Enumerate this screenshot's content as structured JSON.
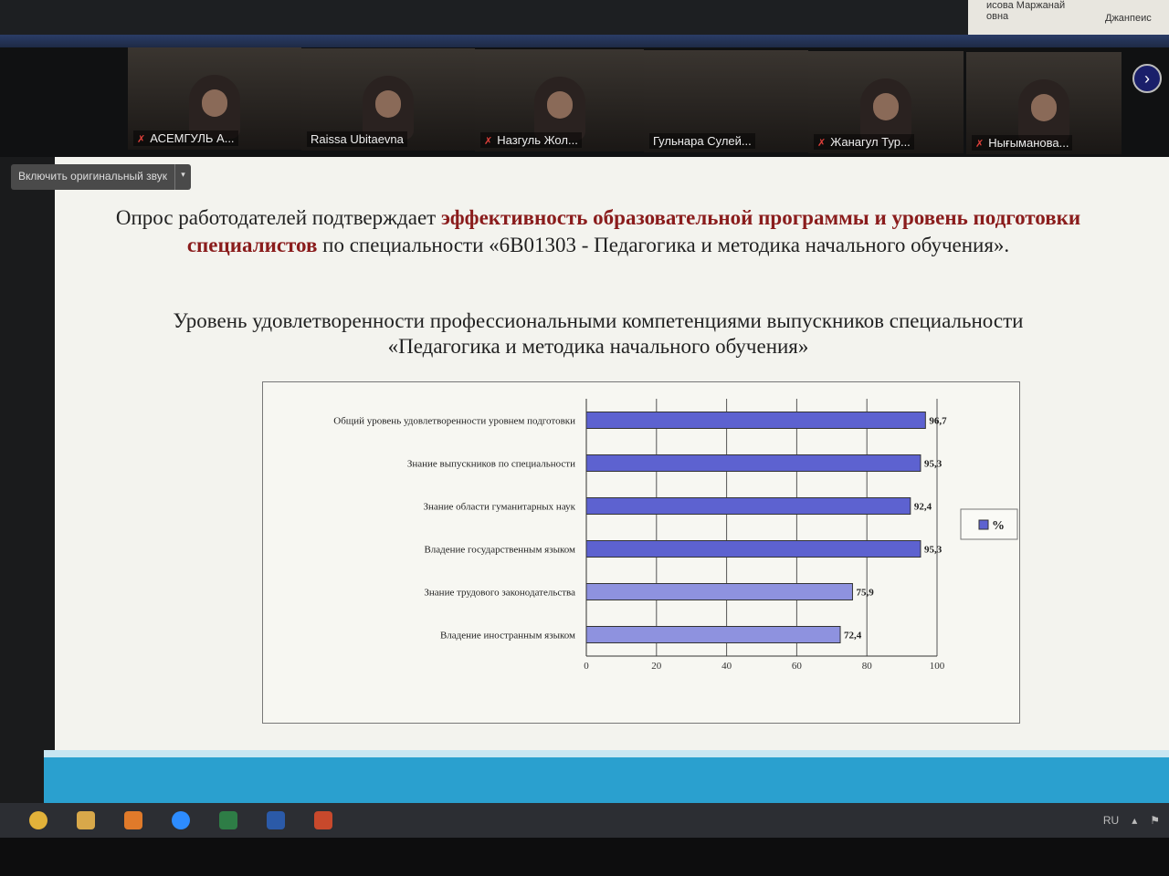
{
  "background_paper": {
    "line1": "исова Маржанай",
    "line2": "овна",
    "right": "Джанпеис"
  },
  "gallery": {
    "participants": [
      {
        "name": "АСЕМГУЛЬ А...",
        "muted": true
      },
      {
        "name": "Raissa Ubitaevna",
        "muted": false
      },
      {
        "name": "Назгуль Жол...",
        "muted": true
      },
      {
        "name": "Гульнара Сулей...",
        "muted": false
      },
      {
        "name": "Жанагул Тур...",
        "muted": true
      },
      {
        "name": "Нығыманова...",
        "muted": true
      }
    ],
    "next_icon": "chevron-right-icon"
  },
  "audio_button": {
    "label": "Включить оригинальный звук",
    "dropdown": "▾"
  },
  "slide": {
    "intro_part1": "Опрос работодателей подтверждает ",
    "intro_highlight": "эффективность образовательной программы и уровень подготовки специалистов",
    "intro_part2": " по специальности «6В01303 - Педагогика и методика начального обучения».",
    "chart_heading": "Уровень удовлетворенности профессиональными компетенциями выпускников специальности «Педагогика и методика начального обучения»",
    "highlight_color": "#8a1c1c"
  },
  "chart_data": {
    "type": "bar",
    "orientation": "horizontal",
    "categories": [
      "Общий уровень удовлетворенности уровнем подготовки",
      "Знание выпускников по специальности",
      "Знание области гуманитарных наук",
      "Владение государственным языком",
      "Знание трудового законодательства",
      "Владение иностранным языком"
    ],
    "series": [
      {
        "name": "%",
        "values": [
          96.7,
          95.3,
          92.4,
          95.3,
          75.9,
          72.4
        ]
      }
    ],
    "data_labels": [
      "96,7",
      "95,3",
      "92,4",
      "95,3",
      "75,9",
      "72,4"
    ],
    "xlim": [
      0,
      100
    ],
    "xticks": [
      "0",
      "20",
      "40",
      "60",
      "80",
      "100"
    ],
    "grid": true,
    "legend": "right",
    "bar_color": "#6b6fd6"
  },
  "taskbar": {
    "apps": [
      "chrome-icon",
      "explorer-icon",
      "media-player-icon",
      "zoom-icon",
      "excel-icon",
      "word-icon",
      "powerpoint-icon"
    ],
    "language": "RU"
  }
}
